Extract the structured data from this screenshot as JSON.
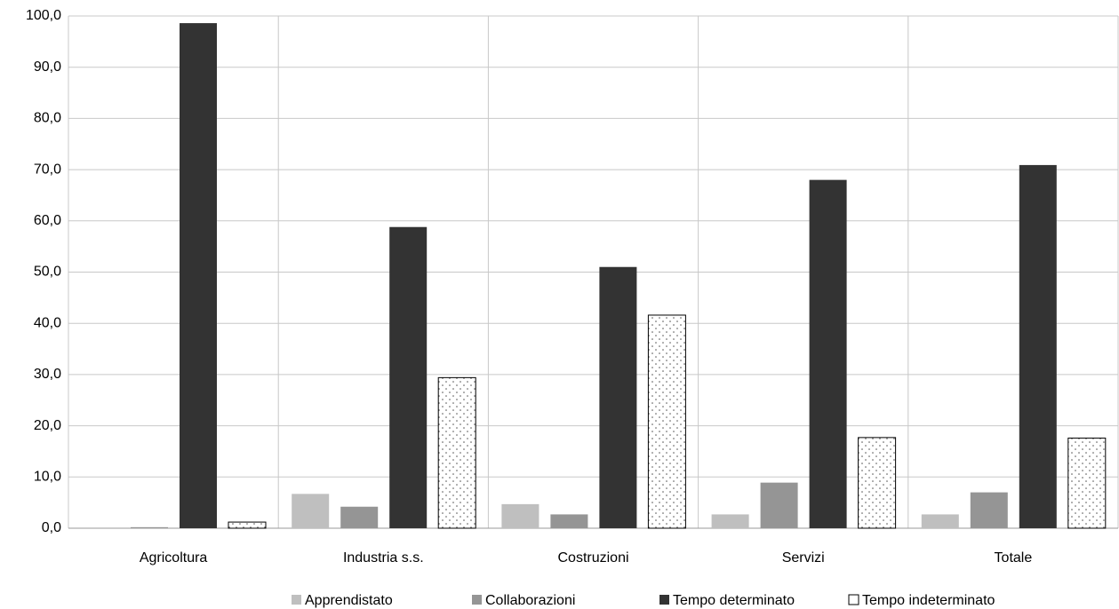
{
  "chart_data": {
    "type": "bar",
    "categories": [
      "Agricoltura",
      "Industria s.s.",
      "Costruzioni",
      "Servizi",
      "Totale"
    ],
    "series": [
      {
        "name": "Apprendistato",
        "color": "#bfbfbf",
        "values": [
          0,
          6.7,
          4.7,
          2.7,
          2.7
        ]
      },
      {
        "name": "Collaborazioni",
        "color": "#959595",
        "values": [
          0.2,
          4.2,
          2.7,
          8.9,
          7.0
        ]
      },
      {
        "name": "Tempo determinato",
        "color": "#333333",
        "values": [
          98.6,
          58.8,
          51.0,
          68.0,
          70.9
        ]
      },
      {
        "name": "Tempo indeterminato",
        "color": "#ffffff",
        "pattern": "dots",
        "values": [
          1.2,
          29.4,
          41.6,
          17.7,
          17.6
        ]
      }
    ],
    "ylim": [
      0,
      100
    ],
    "yticks": [
      {
        "value": 0,
        "label": "0,0"
      },
      {
        "value": 10,
        "label": "10,0"
      },
      {
        "value": 20,
        "label": "20,0"
      },
      {
        "value": 30,
        "label": "30,0"
      },
      {
        "value": 40,
        "label": "40,0"
      },
      {
        "value": 50,
        "label": "50,0"
      },
      {
        "value": 60,
        "label": "60,0"
      },
      {
        "value": 70,
        "label": "70,0"
      },
      {
        "value": 80,
        "label": "80,0"
      },
      {
        "value": 90,
        "label": "90,0"
      },
      {
        "value": 100,
        "label": "100,0"
      }
    ],
    "grid": true,
    "legend": "bottom"
  }
}
